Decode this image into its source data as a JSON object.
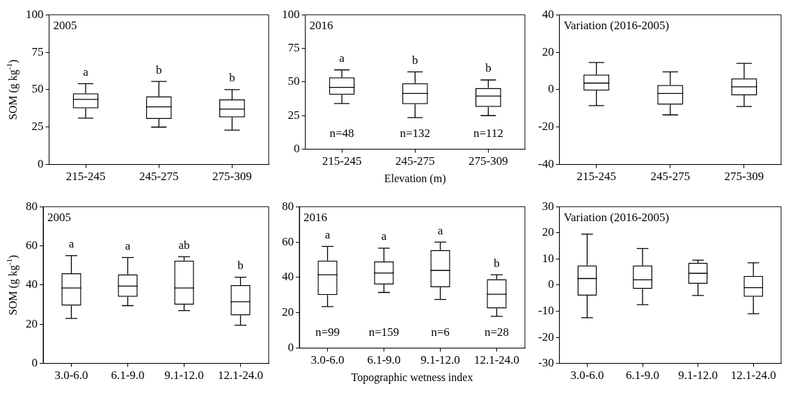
{
  "chart_data": [
    {
      "type": "box",
      "title": "2005",
      "ylabel": "SOM (g kg$^{-1}$)",
      "categories": [
        "215-245",
        "245-275",
        "275-309"
      ],
      "ylim": [
        0,
        100
      ],
      "yticks": [
        0,
        25,
        50,
        75,
        100
      ],
      "grid": false,
      "boxes": [
        {
          "low": 31,
          "q1": 37.5,
          "median": 43.5,
          "q3": 47.5,
          "high": 54
        },
        {
          "low": 25,
          "q1": 30.5,
          "median": 38.5,
          "q3": 45.5,
          "high": 55.5
        },
        {
          "low": 23,
          "q1": 31.5,
          "median": 37,
          "q3": 43.5,
          "high": 50
        }
      ],
      "annotations": [
        "a",
        "b",
        "b"
      ]
    },
    {
      "type": "box",
      "title": "2016",
      "xlabel": "Elevation (m)",
      "categories": [
        "215-245",
        "245-275",
        "275-309"
      ],
      "ylim": [
        0,
        100
      ],
      "yticks": [
        0,
        25,
        50,
        75,
        100
      ],
      "grid": false,
      "boxes": [
        {
          "low": 34,
          "q1": 40.5,
          "median": 46,
          "q3": 53.5,
          "high": 59
        },
        {
          "low": 23.5,
          "q1": 33.5,
          "median": 41.5,
          "q3": 49,
          "high": 57.5
        },
        {
          "low": 25,
          "q1": 31.5,
          "median": 39.5,
          "q3": 45.5,
          "high": 51.5
        }
      ],
      "annotations": [
        "a",
        "b",
        "b",
        "n=48",
        "n=132",
        "n=112"
      ]
    },
    {
      "type": "box",
      "title": "Variation (2016-2005)",
      "categories": [
        "215-245",
        "245-275",
        "275-309"
      ],
      "ylim": [
        -40,
        40
      ],
      "yticks": [
        -40,
        -20,
        0,
        20,
        40
      ],
      "grid": false,
      "boxes": [
        {
          "low": -8.5,
          "q1": -0.5,
          "median": 3.5,
          "q3": 8,
          "high": 14.5
        },
        {
          "low": -13.5,
          "q1": -8,
          "median": -2,
          "q3": 2.5,
          "high": 9.5
        },
        {
          "low": -9,
          "q1": -3,
          "median": 1.5,
          "q3": 6,
          "high": 14
        }
      ]
    },
    {
      "type": "box",
      "title": "2005",
      "ylabel": "SOM (g kg$^{-1}$)",
      "categories": [
        "3.0-6.0",
        "6.1-9.0",
        "9.1-12.0",
        "12.1-24.0"
      ],
      "ylim": [
        0,
        80
      ],
      "yticks": [
        0,
        20,
        40,
        60,
        80
      ],
      "grid": false,
      "boxes": [
        {
          "low": 23,
          "q1": 29.5,
          "median": 38.5,
          "q3": 46,
          "high": 55
        },
        {
          "low": 29.5,
          "q1": 34,
          "median": 39.5,
          "q3": 45.5,
          "high": 54
        },
        {
          "low": 27,
          "q1": 30,
          "median": 38.5,
          "q3": 52.5,
          "high": 54.5
        },
        {
          "low": 19.5,
          "q1": 24.5,
          "median": 31.5,
          "q3": 40,
          "high": 44
        }
      ],
      "annotations": [
        "a",
        "a",
        "ab",
        "b"
      ]
    },
    {
      "type": "box",
      "title": "2016",
      "xlabel": "Topographic wetness index",
      "categories": [
        "3.0-6.0",
        "6.1-9.0",
        "9.1-12.0",
        "12.1-24.0"
      ],
      "ylim": [
        0,
        80
      ],
      "yticks": [
        0,
        20,
        40,
        60,
        80
      ],
      "grid": false,
      "boxes": [
        {
          "low": 23.5,
          "q1": 30,
          "median": 41.5,
          "q3": 49.5,
          "high": 57.5
        },
        {
          "low": 31.5,
          "q1": 36,
          "median": 42.5,
          "q3": 49,
          "high": 56.5
        },
        {
          "low": 27.5,
          "q1": 34.5,
          "median": 44,
          "q3": 55.5,
          "high": 60
        },
        {
          "low": 18,
          "q1": 22.5,
          "median": 30.5,
          "q3": 39,
          "high": 41.5
        }
      ],
      "annotations": [
        "a",
        "a",
        "a",
        "b",
        "n=99",
        "n=159",
        "n=6",
        "n=28"
      ]
    },
    {
      "type": "box",
      "title": "Variation (2016-2005)",
      "categories": [
        "3.0-6.0",
        "6.1-9.0",
        "9.1-12.0",
        "12.1-24.0"
      ],
      "ylim": [
        -30,
        30
      ],
      "yticks": [
        -30,
        -20,
        -10,
        0,
        10,
        20,
        30
      ],
      "grid": false,
      "boxes": [
        {
          "low": -12.5,
          "q1": -4,
          "median": 2.5,
          "q3": 7.5,
          "high": 19.5
        },
        {
          "low": -7.5,
          "q1": -1.5,
          "median": 2,
          "q3": 7.5,
          "high": 14
        },
        {
          "low": -4,
          "q1": 0.5,
          "median": 4.5,
          "q3": 8.5,
          "high": 9.5
        },
        {
          "low": -11,
          "q1": -4.5,
          "median": -1,
          "q3": 3.5,
          "high": 8.5
        }
      ]
    }
  ]
}
